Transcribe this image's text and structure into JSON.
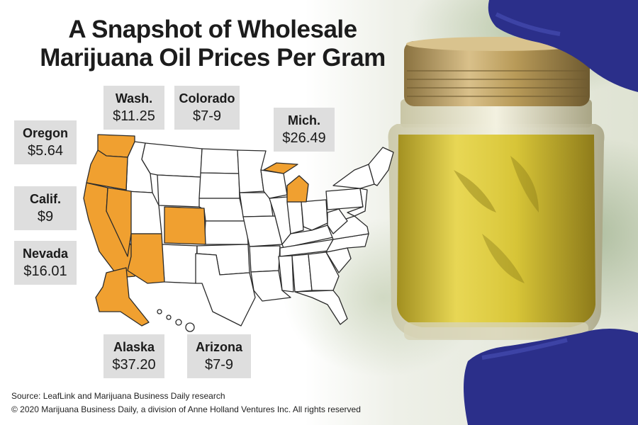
{
  "title": {
    "line1": "A Snapshot of Wholesale",
    "line2": "Marijuana Oil Prices Per Gram"
  },
  "states": [
    {
      "key": "wash",
      "name": "Wash.",
      "price": "$11.25"
    },
    {
      "key": "colorado",
      "name": "Colorado",
      "price": "$7-9"
    },
    {
      "key": "oregon",
      "name": "Oregon",
      "price": "$5.64"
    },
    {
      "key": "mich",
      "name": "Mich.",
      "price": "$26.49"
    },
    {
      "key": "calif",
      "name": "Calif.",
      "price": "$9"
    },
    {
      "key": "nevada",
      "name": "Nevada",
      "price": "$16.01"
    },
    {
      "key": "alaska",
      "name": "Alaska",
      "price": "$37.20"
    },
    {
      "key": "arizona",
      "name": "Arizona",
      "price": "$7-9"
    }
  ],
  "footer": {
    "source": "Source: LeafLink and Marijuana Business Daily research",
    "copyright": "© 2020 Marijuana Business Daily, a division of Anne Holland Ventures Inc. All rights reserved"
  },
  "colors": {
    "highlight": "#f0a030",
    "label_bg": "#dedede",
    "glove": "#2b2f8a",
    "oil": "#d8c12a",
    "cap": "#b79a55"
  }
}
